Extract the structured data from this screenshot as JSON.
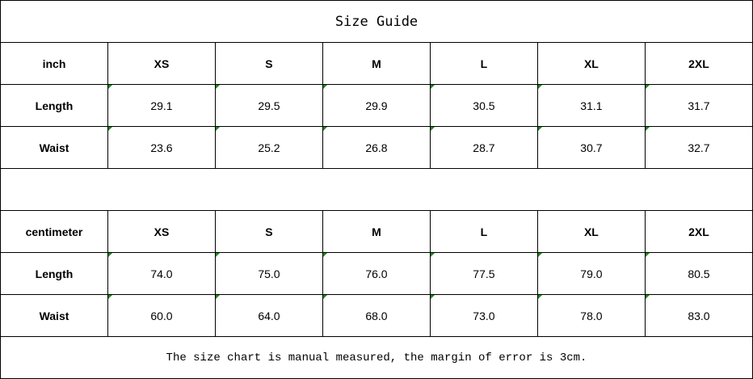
{
  "title": "Size Guide",
  "sizes": [
    "XS",
    "S",
    "M",
    "L",
    "XL",
    "2XL"
  ],
  "inch": {
    "unit_label": "inch",
    "rows": [
      {
        "label": "Length",
        "values": [
          "29.1",
          "29.5",
          "29.9",
          "30.5",
          "31.1",
          "31.7"
        ]
      },
      {
        "label": "Waist",
        "values": [
          "23.6",
          "25.2",
          "26.8",
          "28.7",
          "30.7",
          "32.7"
        ]
      }
    ]
  },
  "centimeter": {
    "unit_label": "centimeter",
    "rows": [
      {
        "label": "Length",
        "values": [
          "74.0",
          "75.0",
          "76.0",
          "77.5",
          "79.0",
          "80.5"
        ]
      },
      {
        "label": "Waist",
        "values": [
          "60.0",
          "64.0",
          "68.0",
          "73.0",
          "78.0",
          "83.0"
        ]
      }
    ]
  },
  "note": "The size chart is manual measured, the margin of error is 3cm.",
  "colors": {
    "cell_marker": "#1a8a1a",
    "border": "#000000"
  }
}
